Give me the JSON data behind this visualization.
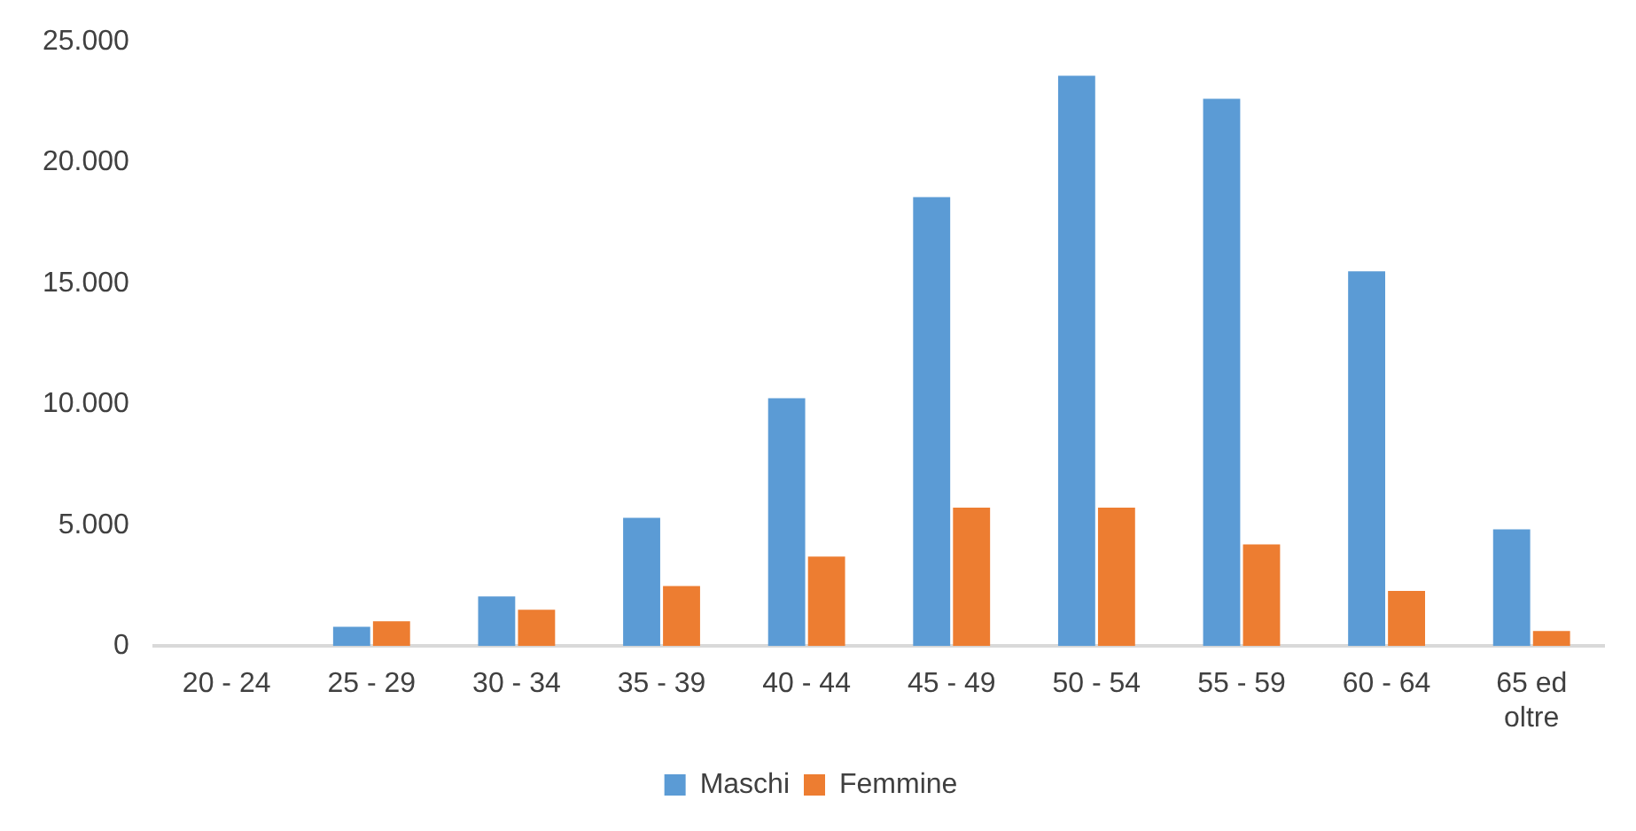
{
  "chart_data": {
    "type": "bar",
    "categories": [
      "20 - 24",
      "25 - 29",
      "30 - 34",
      "35 - 39",
      "40 - 44",
      "45 - 49",
      "50 - 54",
      "55 - 59",
      "60 - 64",
      "65 ed oltre"
    ],
    "series": [
      {
        "name": "Maschi",
        "color": "#5b9bd5",
        "values": [
          0,
          800,
          2050,
          5300,
          10250,
          18570,
          23600,
          22640,
          15500,
          4830
        ]
      },
      {
        "name": "Femmine",
        "color": "#ed7d31",
        "values": [
          0,
          1020,
          1500,
          2480,
          3700,
          5730,
          5730,
          4200,
          2280,
          620
        ]
      }
    ],
    "ylim": [
      0,
      25000
    ],
    "yticks": [
      {
        "value": 0,
        "label": "0"
      },
      {
        "value": 5000,
        "label": "5.000"
      },
      {
        "value": 10000,
        "label": "10.000"
      },
      {
        "value": 15000,
        "label": "15.000"
      },
      {
        "value": 20000,
        "label": "20.000"
      },
      {
        "value": 25000,
        "label": "25.000"
      }
    ],
    "grid": false,
    "legend": "bottom"
  }
}
